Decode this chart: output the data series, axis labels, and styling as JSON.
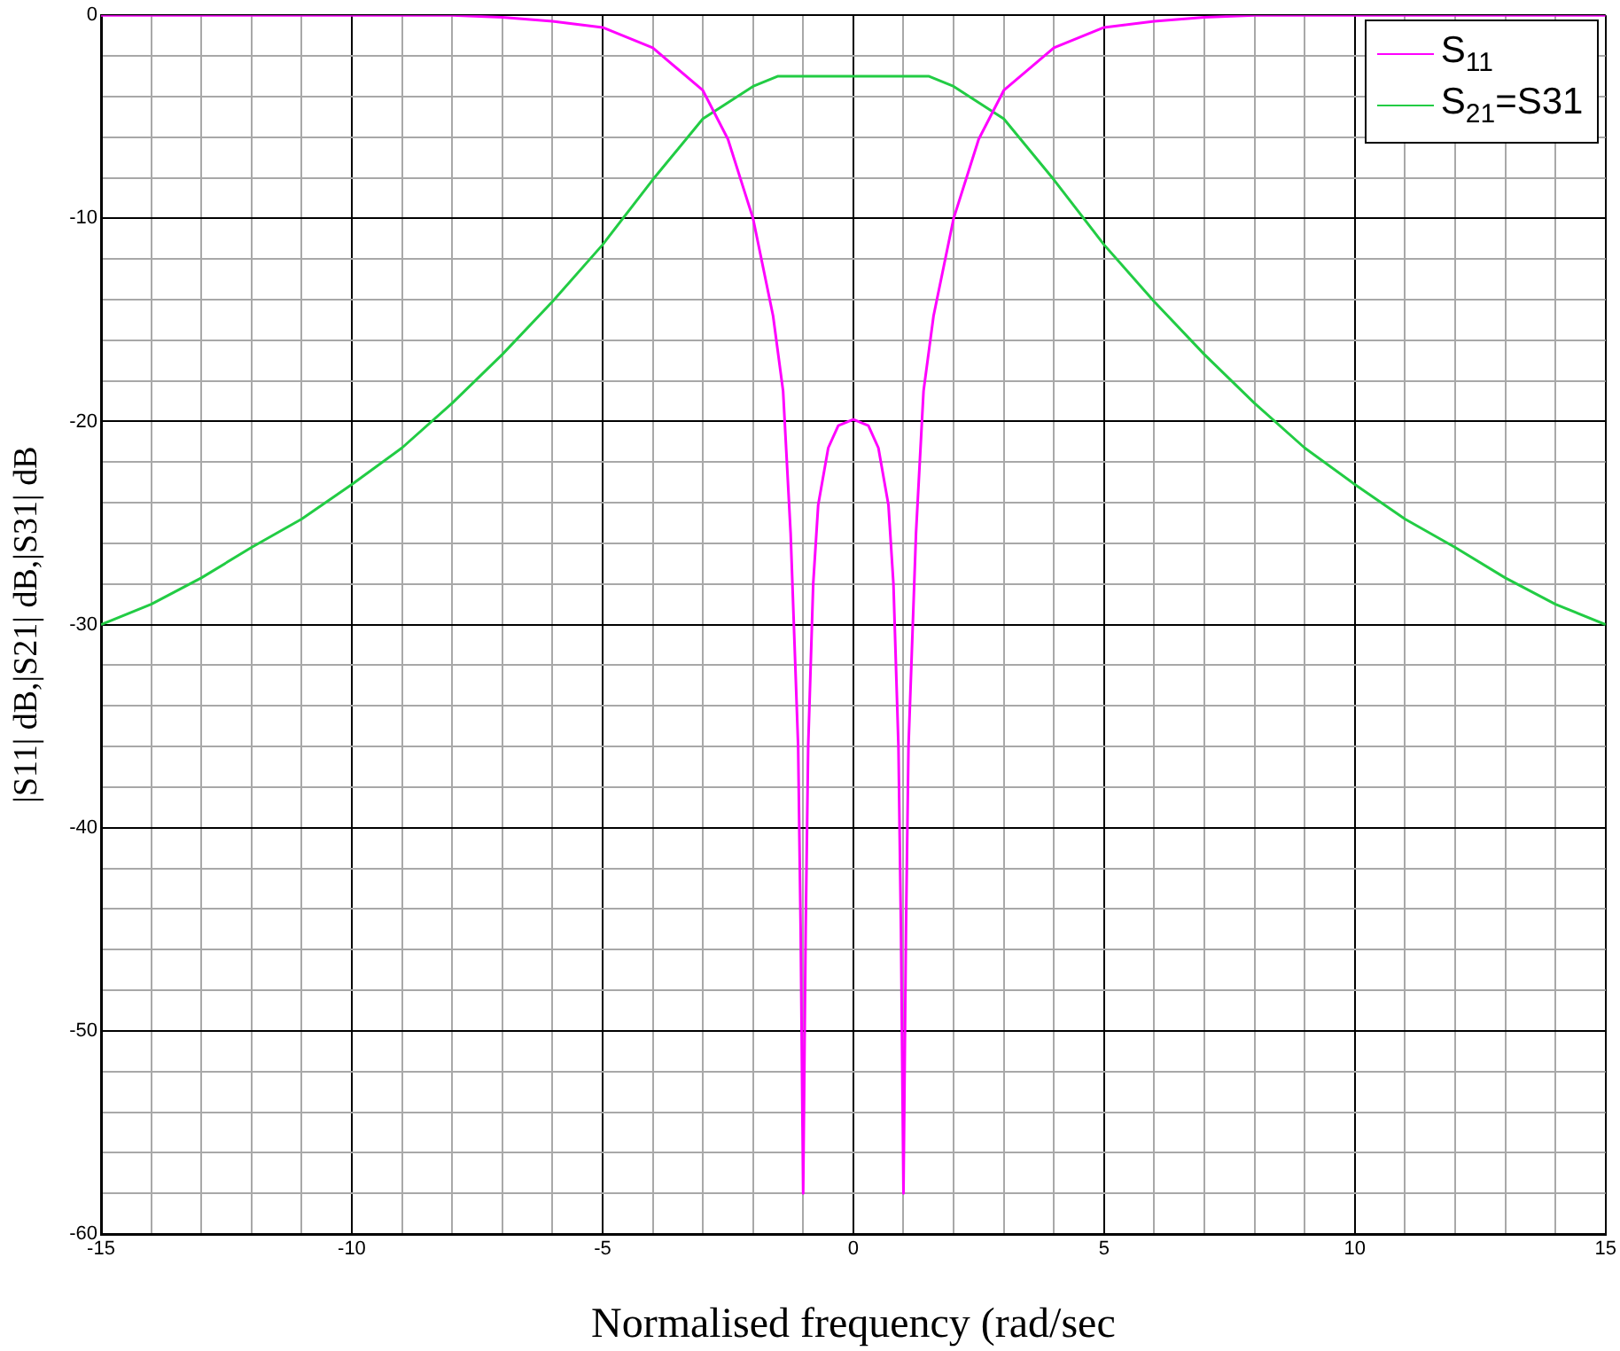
{
  "chart_data": {
    "type": "line",
    "xlabel": "Normalised frequency (rad/sec",
    "ylabel": "|S11| dB,|S21| dB,|S31| dB",
    "xlim": [
      -15,
      15
    ],
    "ylim": [
      -60,
      0
    ],
    "xticks": [
      -15,
      {
        "value": -14,
        "label": null
      },
      {
        "value": -13,
        "label": null
      },
      {
        "value": -12,
        "label": null
      },
      {
        "value": -11,
        "label": null
      },
      -10,
      {
        "value": -9,
        "label": null
      },
      {
        "value": -8,
        "label": null
      },
      {
        "value": -7,
        "label": null
      },
      {
        "value": -6,
        "label": null
      },
      -5,
      {
        "value": -4,
        "label": null
      },
      {
        "value": -3,
        "label": null
      },
      {
        "value": -2,
        "label": null
      },
      {
        "value": -1,
        "label": null
      },
      0,
      {
        "value": 1,
        "label": null
      },
      {
        "value": 2,
        "label": null
      },
      {
        "value": 3,
        "label": null
      },
      {
        "value": 4,
        "label": null
      },
      5,
      {
        "value": 6,
        "label": null
      },
      {
        "value": 7,
        "label": null
      },
      {
        "value": 8,
        "label": null
      },
      {
        "value": 9,
        "label": null
      },
      10,
      {
        "value": 11,
        "label": null
      },
      {
        "value": 12,
        "label": null
      },
      {
        "value": 13,
        "label": null
      },
      {
        "value": 14,
        "label": null
      },
      15
    ],
    "yticks": [
      -60,
      {
        "value": -58,
        "label": null
      },
      {
        "value": -56,
        "label": null
      },
      {
        "value": -54,
        "label": null
      },
      {
        "value": -52,
        "label": null
      },
      -50,
      {
        "value": -48,
        "label": null
      },
      {
        "value": -46,
        "label": null
      },
      {
        "value": -44,
        "label": null
      },
      {
        "value": -42,
        "label": null
      },
      -40,
      {
        "value": -38,
        "label": null
      },
      {
        "value": -36,
        "label": null
      },
      {
        "value": -34,
        "label": null
      },
      {
        "value": -32,
        "label": null
      },
      -30,
      {
        "value": -28,
        "label": null
      },
      {
        "value": -26,
        "label": null
      },
      {
        "value": -24,
        "label": null
      },
      {
        "value": -22,
        "label": null
      },
      -20,
      {
        "value": -18,
        "label": null
      },
      {
        "value": -16,
        "label": null
      },
      {
        "value": -14,
        "label": null
      },
      {
        "value": -12,
        "label": null
      },
      -10,
      {
        "value": -8,
        "label": null
      },
      {
        "value": -6,
        "label": null
      },
      {
        "value": -4,
        "label": null
      },
      {
        "value": -2,
        "label": null
      },
      0
    ],
    "grid": true,
    "legend": "top right",
    "marker": "none",
    "line_style": "solid",
    "series": [
      {
        "name": "S$_{11}$",
        "color": "#ff00ff",
        "x": [
          -15,
          -12,
          -9,
          -8,
          -7,
          -6,
          -5,
          -4,
          -3,
          -2.5,
          -2,
          -1.6,
          -1.4,
          -1.25,
          -1.1,
          -1.05,
          -1,
          -0.95,
          -0.9,
          -0.8,
          -0.7,
          -0.5,
          -0.3,
          0,
          0.3,
          0.5,
          0.7,
          0.8,
          0.9,
          0.95,
          1,
          1.05,
          1.1,
          1.25,
          1.4,
          1.6,
          2,
          2.5,
          3,
          4,
          5,
          6,
          7,
          8,
          9,
          12,
          15
        ],
        "values": [
          0,
          0,
          0,
          0,
          -0.1,
          -0.3,
          -0.6,
          -1.6,
          -3.7,
          -6.1,
          -10,
          -14.8,
          -18.5,
          -25.5,
          -36,
          -45,
          -58,
          -45,
          -36,
          -28,
          -24.1,
          -21.3,
          -20.2,
          -19.9,
          -20.2,
          -21.3,
          -24.1,
          -28,
          -36,
          -45,
          -58,
          -45,
          -36,
          -25.5,
          -18.5,
          -14.8,
          -10,
          -6.1,
          -3.7,
          -1.6,
          -0.6,
          -0.3,
          -0.1,
          0,
          0,
          0,
          0
        ]
      },
      {
        "name": "S$_{21}$=S31",
        "color": "#22cc44",
        "x": [
          -15,
          -14,
          -13,
          -12,
          -11,
          -10,
          -9,
          -8,
          -7,
          -6,
          -5,
          -4,
          -3,
          -2,
          -1.5,
          0,
          1.5,
          2,
          3,
          4,
          5,
          6,
          7,
          8,
          9,
          10,
          11,
          12,
          13,
          14,
          15
        ],
        "values": [
          -30,
          -29,
          -27.7,
          -26.2,
          -24.8,
          -23.1,
          -21.3,
          -19.1,
          -16.7,
          -14.1,
          -11.3,
          -8.1,
          -5.1,
          -3.5,
          -3,
          -3,
          -3,
          -3.5,
          -5.1,
          -8.1,
          -11.3,
          -14.1,
          -16.7,
          -19.1,
          -21.3,
          -23.1,
          -24.8,
          -26.2,
          -27.7,
          -29,
          -30
        ]
      }
    ]
  }
}
